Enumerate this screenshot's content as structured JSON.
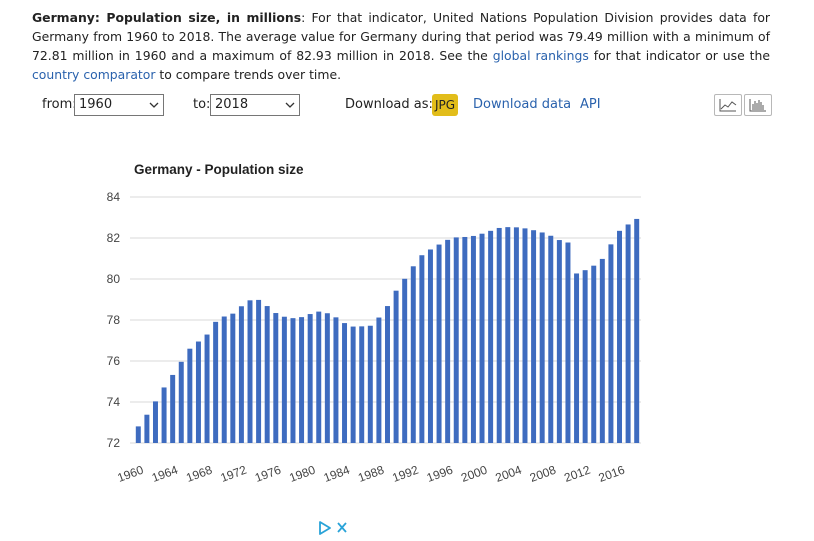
{
  "description": {
    "title_bold": "Germany: Population size, in millions",
    "text_1": ": For that indicator, United Nations Population Division provides data for Germany from 1960 to 2018. The average value for Germany during that period was 79.49 million with a minimum of 72.81 million in 1960 and a maximum of 82.93 million in 2018. See the ",
    "link_rankings": "global rankings",
    "text_2": " for that indicator or use the ",
    "link_comparator": "country comparator",
    "text_3": " to compare trends over time."
  },
  "controls": {
    "from_label": "from:",
    "from_value": "1960",
    "to_label": "to:",
    "to_value": "2018",
    "download_label": "Download as:",
    "jpg_label": "JPG",
    "download_data_label": "Download data",
    "api_label": "API"
  },
  "colors": {
    "bar": "#3e6bbf",
    "link": "#2a62ad",
    "jpg_button": "#e2bd1a",
    "grid": "#d9d9d9"
  },
  "icons": {
    "line_chart": "line-chart-icon",
    "bar_chart": "bar-chart-icon",
    "ad_play": "ad-choices-icon",
    "ad_close": "close-icon"
  },
  "chart_data": {
    "type": "bar",
    "title": "Germany - Population size",
    "xlabel": "",
    "ylabel": "",
    "ylim": [
      72,
      84
    ],
    "yticks": [
      72,
      74,
      76,
      78,
      80,
      82,
      84
    ],
    "grid": true,
    "legend": "none",
    "x_tick_labels": [
      "1960",
      "1964",
      "1968",
      "1972",
      "1976",
      "1980",
      "1984",
      "1988",
      "1992",
      "1996",
      "2000",
      "2004",
      "2008",
      "2012",
      "2016"
    ],
    "categories": [
      "1960",
      "1961",
      "1962",
      "1963",
      "1964",
      "1965",
      "1966",
      "1967",
      "1968",
      "1969",
      "1970",
      "1971",
      "1972",
      "1973",
      "1974",
      "1975",
      "1976",
      "1977",
      "1978",
      "1979",
      "1980",
      "1981",
      "1982",
      "1983",
      "1984",
      "1985",
      "1986",
      "1987",
      "1988",
      "1989",
      "1990",
      "1991",
      "1992",
      "1993",
      "1994",
      "1995",
      "1996",
      "1997",
      "1998",
      "1999",
      "2000",
      "2001",
      "2002",
      "2003",
      "2004",
      "2005",
      "2006",
      "2007",
      "2008",
      "2009",
      "2010",
      "2011",
      "2012",
      "2013",
      "2014",
      "2015",
      "2016",
      "2017",
      "2018"
    ],
    "values": [
      72.81,
      73.38,
      74.03,
      74.71,
      75.32,
      75.96,
      76.6,
      76.95,
      77.29,
      77.91,
      78.17,
      78.31,
      78.67,
      78.96,
      78.98,
      78.68,
      78.34,
      78.16,
      78.09,
      78.14,
      78.29,
      78.41,
      78.33,
      78.13,
      77.85,
      77.68,
      77.69,
      77.72,
      78.12,
      78.68,
      79.43,
      80.01,
      80.62,
      81.16,
      81.44,
      81.68,
      81.91,
      82.03,
      82.05,
      82.1,
      82.21,
      82.35,
      82.49,
      82.53,
      82.52,
      82.47,
      82.38,
      82.27,
      82.11,
      81.9,
      81.78,
      80.27,
      80.43,
      80.65,
      80.98,
      81.69,
      82.35,
      82.66,
      82.93
    ]
  }
}
